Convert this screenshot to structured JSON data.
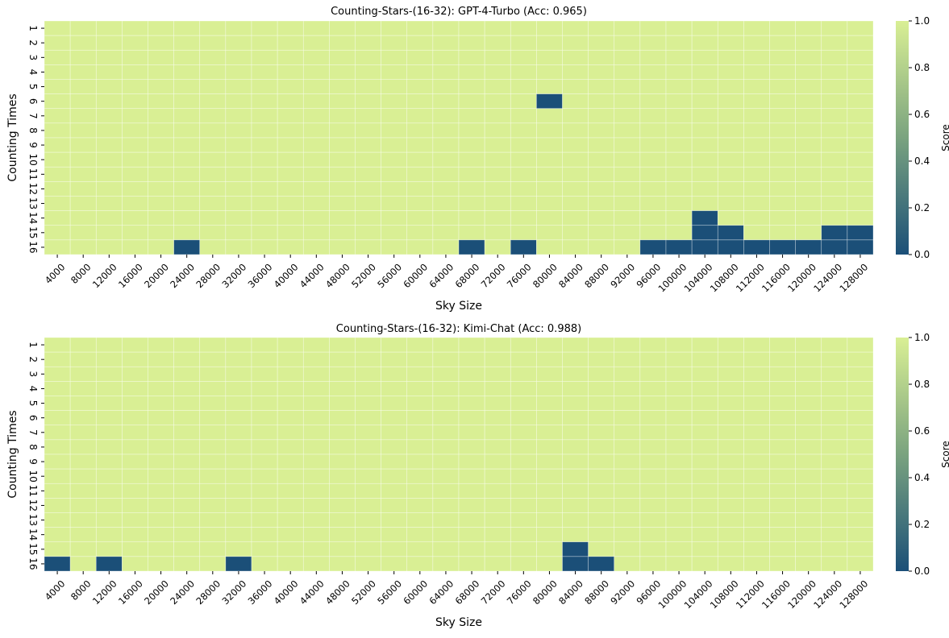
{
  "chart_data": [
    {
      "type": "heatmap",
      "title": "Counting-Stars-(16-32): GPT-4-Turbo (Acc: 0.965)",
      "xlabel": "Sky Size",
      "ylabel": "Counting Times",
      "x_categories": [
        "4000",
        "8000",
        "12000",
        "16000",
        "20000",
        "24000",
        "28000",
        "32000",
        "36000",
        "40000",
        "44000",
        "48000",
        "52000",
        "56000",
        "60000",
        "64000",
        "68000",
        "72000",
        "76000",
        "80000",
        "84000",
        "88000",
        "92000",
        "96000",
        "100000",
        "104000",
        "108000",
        "112000",
        "116000",
        "120000",
        "124000",
        "128000"
      ],
      "y_categories": [
        "1",
        "2",
        "3",
        "4",
        "5",
        "6",
        "7",
        "8",
        "9",
        "10",
        "11",
        "12",
        "13",
        "14",
        "15",
        "16"
      ],
      "value_default": 1,
      "low_cells": [
        {
          "x": "80000",
          "y": "6",
          "value": 0
        },
        {
          "x": "104000",
          "y": "14",
          "value": 0
        },
        {
          "x": "104000",
          "y": "15",
          "value": 0
        },
        {
          "x": "108000",
          "y": "15",
          "value": 0
        },
        {
          "x": "124000",
          "y": "15",
          "value": 0
        },
        {
          "x": "128000",
          "y": "15",
          "value": 0
        },
        {
          "x": "24000",
          "y": "16",
          "value": 0
        },
        {
          "x": "68000",
          "y": "16",
          "value": 0
        },
        {
          "x": "76000",
          "y": "16",
          "value": 0
        },
        {
          "x": "96000",
          "y": "16",
          "value": 0
        },
        {
          "x": "100000",
          "y": "16",
          "value": 0
        },
        {
          "x": "104000",
          "y": "16",
          "value": 0
        },
        {
          "x": "108000",
          "y": "16",
          "value": 0
        },
        {
          "x": "112000",
          "y": "16",
          "value": 0
        },
        {
          "x": "116000",
          "y": "16",
          "value": 0
        },
        {
          "x": "120000",
          "y": "16",
          "value": 0
        },
        {
          "x": "124000",
          "y": "16",
          "value": 0
        },
        {
          "x": "128000",
          "y": "16",
          "value": 0
        }
      ],
      "colorbar": {
        "label": "Score",
        "ticks": [
          "0.0",
          "0.2",
          "0.4",
          "0.6",
          "0.8",
          "1.0"
        ],
        "range": [
          0,
          1
        ],
        "low_color": "#1b4f78",
        "mid_color": "#7aa37f",
        "high_color": "#d9ef94"
      }
    },
    {
      "type": "heatmap",
      "title": "Counting-Stars-(16-32): Kimi-Chat (Acc: 0.988)",
      "xlabel": "Sky Size",
      "ylabel": "Counting Times",
      "x_categories": [
        "4000",
        "8000",
        "12000",
        "16000",
        "20000",
        "24000",
        "28000",
        "32000",
        "36000",
        "40000",
        "44000",
        "48000",
        "52000",
        "56000",
        "60000",
        "64000",
        "68000",
        "72000",
        "76000",
        "80000",
        "84000",
        "88000",
        "92000",
        "96000",
        "100000",
        "104000",
        "108000",
        "112000",
        "116000",
        "120000",
        "124000",
        "128000"
      ],
      "y_categories": [
        "1",
        "2",
        "3",
        "4",
        "5",
        "6",
        "7",
        "8",
        "9",
        "10",
        "11",
        "12",
        "13",
        "14",
        "15",
        "16"
      ],
      "value_default": 1,
      "low_cells": [
        {
          "x": "84000",
          "y": "15",
          "value": 0
        },
        {
          "x": "4000",
          "y": "16",
          "value": 0
        },
        {
          "x": "12000",
          "y": "16",
          "value": 0
        },
        {
          "x": "32000",
          "y": "16",
          "value": 0
        },
        {
          "x": "84000",
          "y": "16",
          "value": 0
        },
        {
          "x": "88000",
          "y": "16",
          "value": 0
        }
      ],
      "colorbar": {
        "label": "Score",
        "ticks": [
          "0.0",
          "0.2",
          "0.4",
          "0.6",
          "0.8",
          "1.0"
        ],
        "range": [
          0,
          1
        ],
        "low_color": "#1b4f78",
        "mid_color": "#7aa37f",
        "high_color": "#d9ef94"
      }
    }
  ]
}
